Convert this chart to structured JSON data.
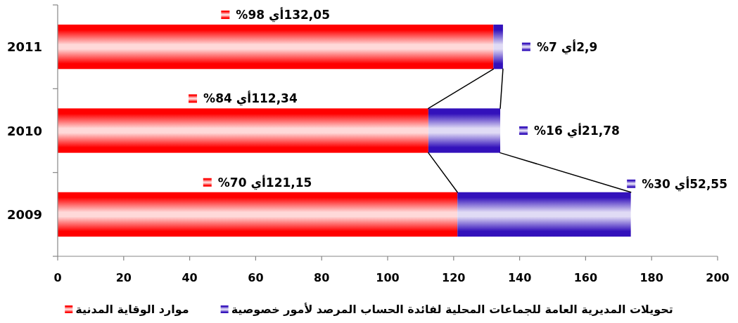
{
  "chart_data": {
    "type": "bar",
    "orientation": "horizontal",
    "stacked": true,
    "categories": [
      "2011",
      "2010",
      "2009"
    ],
    "series": [
      {
        "name": "موارد الوقاية المدنية",
        "color": "#ff0000",
        "values": [
          132.05,
          112.34,
          121.15
        ],
        "value_labels": [
          "132,05أي 98%",
          "112,34أي 84%",
          "121,15أي 70%"
        ]
      },
      {
        "name": "تحويلات المديرية العامة للجماعات المحلية لفائدة الحساب المرصد لأمور خصوصية",
        "color": "#3311bb",
        "values": [
          2.9,
          21.78,
          52.55
        ],
        "value_labels": [
          "2,9أي 7%",
          "21,78أي 16%",
          "52,55أي 30%"
        ]
      }
    ],
    "xlim": [
      0,
      200
    ],
    "xticks": [
      0,
      20,
      40,
      60,
      80,
      100,
      120,
      140,
      160,
      180,
      200
    ],
    "legend": "bottom"
  }
}
